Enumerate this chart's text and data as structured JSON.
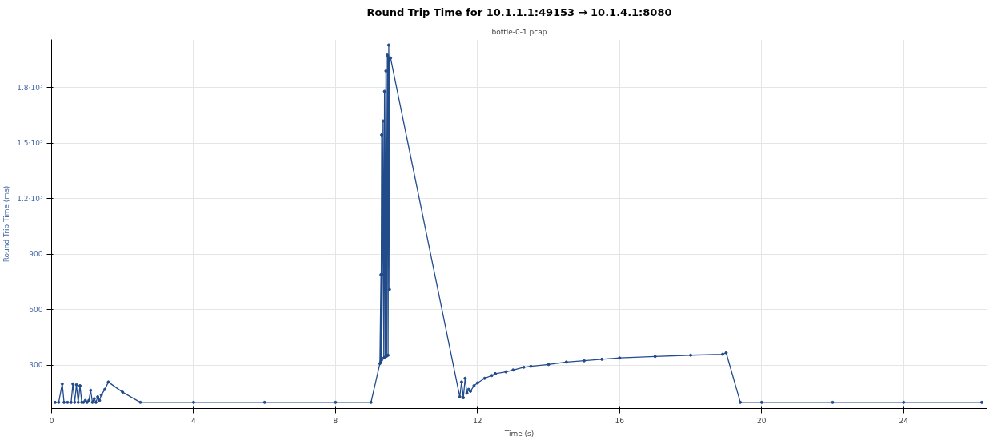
{
  "chart_data": {
    "type": "line",
    "title": "Round Trip Time for 10.1.1.1:49153 → 10.1.4.1:8080",
    "subtitle": "bottle-0-1.pcap",
    "xlabel": "Time (s)",
    "ylabel": "Round Trip Time (ms)",
    "x": [
      0.1,
      0.2,
      0.3,
      0.35,
      0.45,
      0.55,
      0.6,
      0.65,
      0.7,
      0.75,
      0.8,
      0.85,
      0.9,
      0.95,
      1.0,
      1.05,
      1.1,
      1.15,
      1.2,
      1.25,
      1.3,
      1.35,
      1.4,
      1.5,
      1.6,
      2.0,
      2.5,
      4.0,
      6.0,
      8.0,
      9.0,
      9.25,
      9.28,
      9.28,
      9.3,
      9.3,
      9.32,
      9.34,
      9.36,
      9.38,
      9.4,
      9.42,
      9.44,
      9.46,
      9.47,
      9.48,
      9.5,
      9.52,
      9.53,
      9.55,
      11.5,
      11.55,
      11.6,
      11.65,
      11.7,
      11.75,
      11.8,
      11.9,
      12.0,
      12.2,
      12.4,
      12.5,
      12.8,
      13.0,
      13.3,
      13.5,
      14.0,
      14.5,
      15.0,
      15.5,
      16.0,
      17.0,
      18.0,
      18.9,
      19.0,
      19.4,
      20.0,
      22.0,
      24.0,
      26.2
    ],
    "values": [
      100,
      100,
      200,
      100,
      100,
      100,
      200,
      100,
      195,
      100,
      190,
      100,
      100,
      110,
      100,
      110,
      165,
      100,
      120,
      100,
      130,
      110,
      140,
      170,
      210,
      155,
      100,
      100,
      100,
      100,
      100,
      310,
      790,
      320,
      1545,
      330,
      790,
      1620,
      340,
      1780,
      345,
      1890,
      350,
      1980,
      1970,
      355,
      2030,
      710,
      1960,
      1960,
      130,
      210,
      125,
      230,
      150,
      170,
      160,
      190,
      205,
      230,
      245,
      255,
      265,
      275,
      290,
      295,
      305,
      318,
      325,
      333,
      340,
      348,
      355,
      360,
      368,
      100,
      100,
      100,
      100,
      100
    ],
    "color": "#224b8b",
    "marker": "circle",
    "line_style": "solid",
    "xlim": [
      0,
      26.35
    ],
    "ylim": [
      67,
      2060
    ],
    "xticks": [
      0,
      4,
      8,
      12,
      16,
      20,
      24
    ],
    "yticks": [
      300,
      600,
      900,
      {
        "value": 1200,
        "label": "1.2·10³"
      },
      {
        "value": 1500,
        "label": "1.5·10³"
      },
      {
        "value": 1800,
        "label": "1.8·10³"
      }
    ],
    "grid": true
  }
}
